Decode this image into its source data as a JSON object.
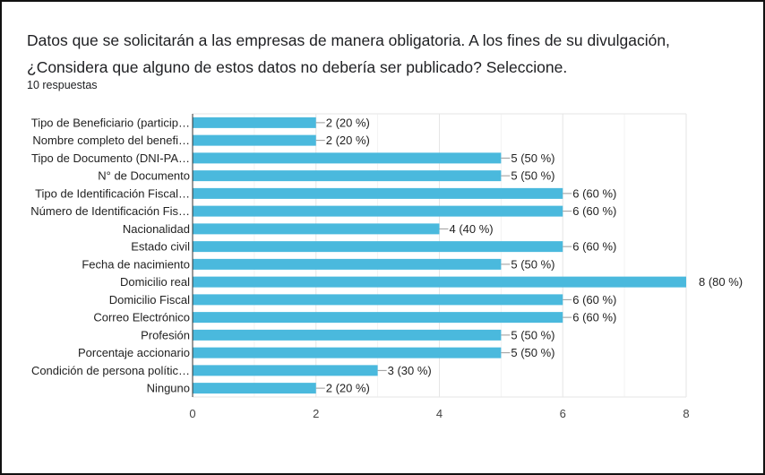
{
  "question": {
    "title": "Datos que se solicitarán a las empresas de manera obligatoria. A los fines de su divulgación, ¿Considera que alguno de estos datos no debería ser publicado? Seleccione.",
    "responses": "10 respuestas"
  },
  "chart_data": {
    "type": "bar",
    "orientation": "horizontal",
    "categories": [
      "Tipo de Beneficiario (particip…",
      "Nombre completo del benefi…",
      "Tipo de Documento (DNI-PA…",
      "N° de Documento",
      "Tipo de Identificación Fiscal…",
      "Número de Identificación Fis…",
      "Nacionalidad",
      "Estado civil",
      "Fecha de nacimiento",
      "Domicilio real",
      "Domicilio Fiscal",
      "Correo Electrónico",
      "Profesión",
      "Porcentaje accionario",
      "Condición de persona polític…",
      "Ninguno"
    ],
    "values": [
      2,
      2,
      5,
      5,
      6,
      6,
      4,
      6,
      5,
      8,
      6,
      6,
      5,
      5,
      3,
      2
    ],
    "data_labels": [
      "2 (20 %)",
      "2 (20 %)",
      "5 (50 %)",
      "5 (50 %)",
      "6 (60 %)",
      "6 (60 %)",
      "4 (40 %)",
      "6 (60 %)",
      "5 (50 %)",
      "8 (80 %)",
      "6 (60 %)",
      "6 (60 %)",
      "5 (50 %)",
      "5 (50 %)",
      "3 (30 %)",
      "2 (20 %)"
    ],
    "xlim": [
      0,
      8
    ],
    "xticks": [
      "0",
      "2",
      "4",
      "6",
      "8"
    ],
    "grid": true,
    "bar_color": "#4ab9dd"
  }
}
